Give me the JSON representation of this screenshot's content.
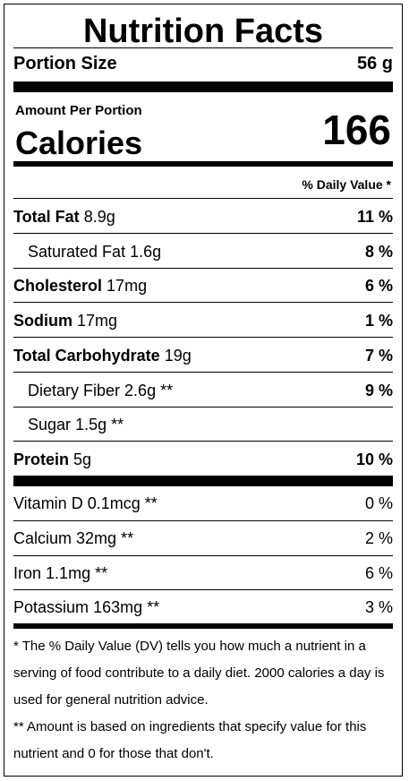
{
  "title": "Nutrition Facts",
  "portion": {
    "label": "Portion Size",
    "value": "56 g"
  },
  "amount_per_portion": "Amount Per Portion",
  "calories": {
    "label": "Calories",
    "value": "166"
  },
  "daily_value_header": "% Daily Value *",
  "nutrients": [
    {
      "name": "Total Fat",
      "amount": "8.9g",
      "dv": "11 %"
    },
    {
      "name": "Saturated Fat",
      "amount": "1.6g",
      "dv": "8 %"
    },
    {
      "name": "Cholesterol",
      "amount": "17mg",
      "dv": "6 %"
    },
    {
      "name": "Sodium",
      "amount": "17mg",
      "dv": "1 %"
    },
    {
      "name": "Total Carbohydrate",
      "amount": "19g",
      "dv": "7 %"
    },
    {
      "name": "Dietary Fiber",
      "amount": "2.6g **",
      "dv": "9 %"
    },
    {
      "name": "Sugar",
      "amount": "1.5g **",
      "dv": ""
    },
    {
      "name": "Protein",
      "amount": "5g",
      "dv": "10 %"
    }
  ],
  "micros": [
    {
      "name": "Vitamin D",
      "amount": "0.1mcg **",
      "dv": "0 %"
    },
    {
      "name": "Calcium",
      "amount": "32mg **",
      "dv": "2 %"
    },
    {
      "name": "Iron",
      "amount": "1.1mg **",
      "dv": "6 %"
    },
    {
      "name": "Potassium",
      "amount": "163mg **",
      "dv": "3 %"
    }
  ],
  "footnotes": [
    "* The % Daily Value (DV) tells you how much a nutrient in a serving of food contribute to a daily diet. 2000 calories a day is used for general nutrition advice.",
    "** Amount is based on ingredients that specify value for this nutrient and 0 for those that don't."
  ]
}
